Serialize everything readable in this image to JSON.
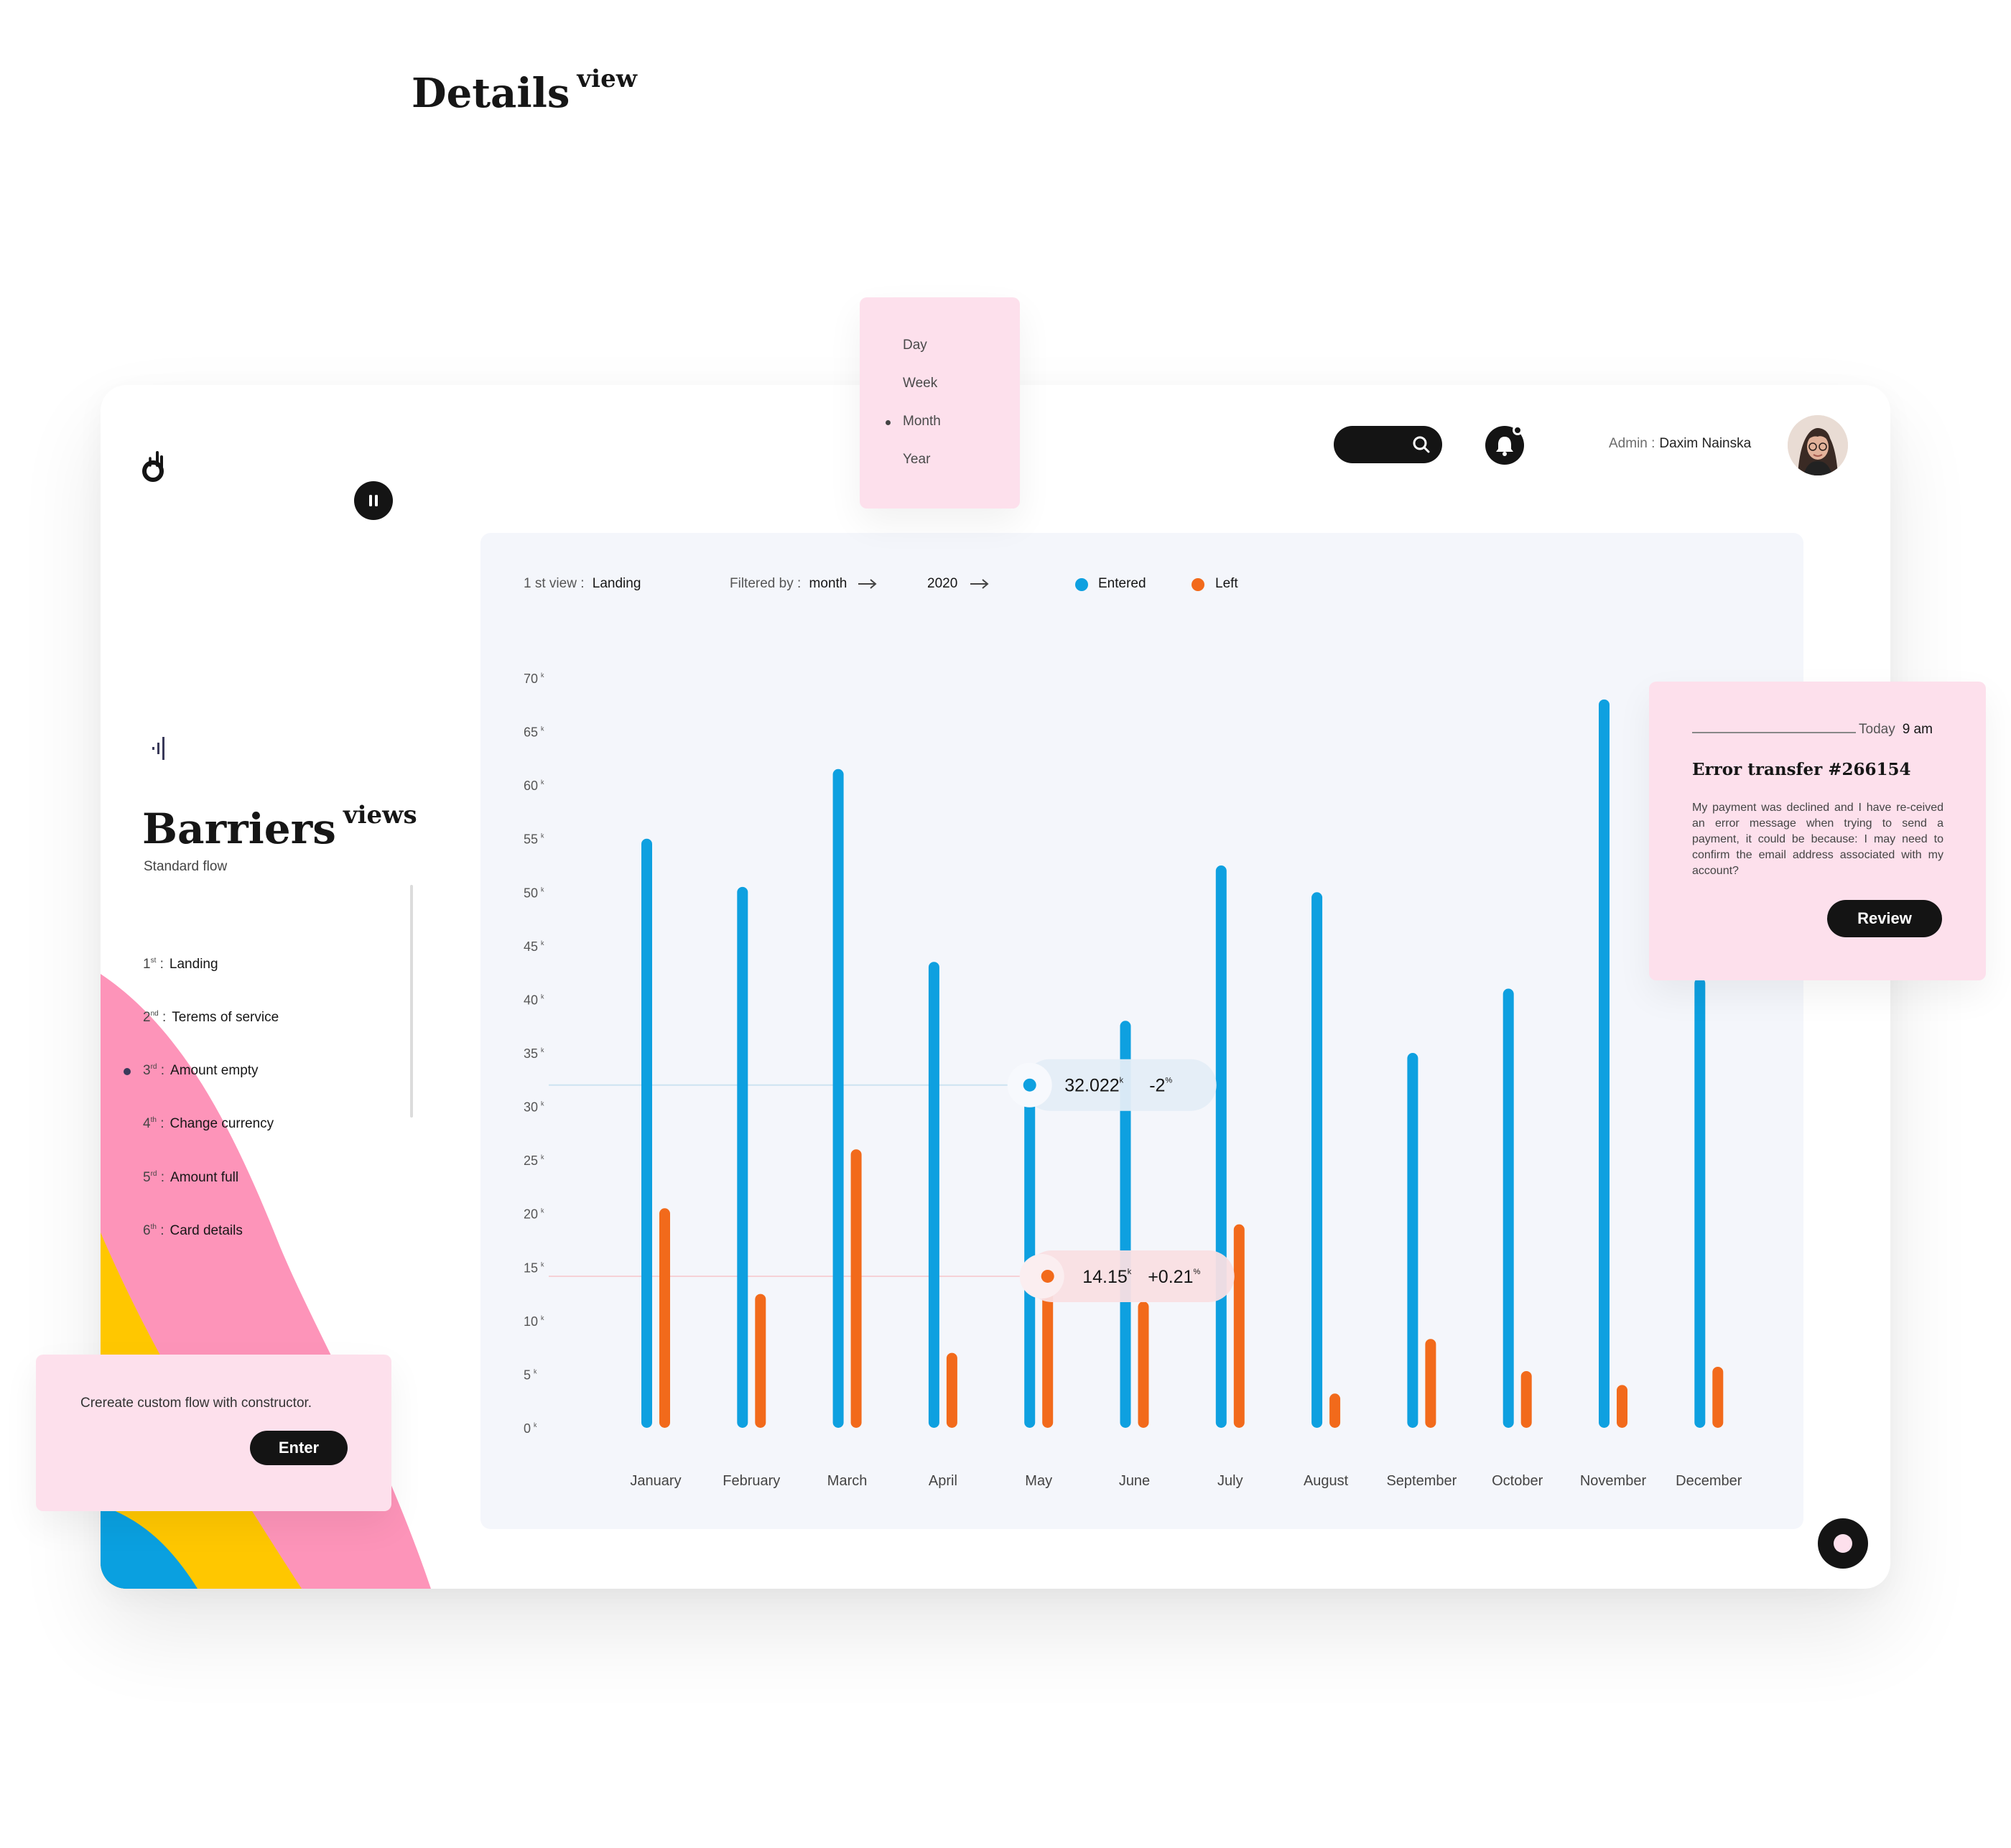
{
  "page": {
    "title": "Details",
    "title_suffix": "view"
  },
  "period_menu": {
    "items": [
      "Day",
      "Week",
      "Month",
      "Year"
    ],
    "selected": "Month"
  },
  "header": {
    "admin_label": "Admin :",
    "admin_name": "Daxim Nainska",
    "search_icon": "search-icon",
    "bell_icon": "bell-icon"
  },
  "sidebar": {
    "title": "Barriers",
    "title_suffix": "views",
    "subtitle": "Standard flow",
    "steps": [
      {
        "num": "1",
        "ord": "st",
        "label": "Landing"
      },
      {
        "num": "2",
        "ord": "nd",
        "label": "Terems of service"
      },
      {
        "num": "3",
        "ord": "rd",
        "label": "Amount empty"
      },
      {
        "num": "4",
        "ord": "th",
        "label": "Change currency"
      },
      {
        "num": "5",
        "ord": "rd",
        "label": "Amount full"
      },
      {
        "num": "6",
        "ord": "th",
        "label": "Card details"
      }
    ],
    "active_step": 2
  },
  "constructor": {
    "text": "Crereate custom flow with constructor.",
    "button": "Enter"
  },
  "filters": {
    "view_label": "1 st view :",
    "view_value": "Landing",
    "filter_label": "Filtered by :",
    "filter_value": "month",
    "year": "2020"
  },
  "colors": {
    "entered": "#0ea0e0",
    "left": "#f26a1b",
    "pink": "#fde0ec",
    "yellow": "#ffc700",
    "blue": "#0aa0e0",
    "dark": "#141414"
  },
  "chart_data": {
    "type": "bar",
    "categories": [
      "January",
      "February",
      "March",
      "April",
      "May",
      "June",
      "July",
      "August",
      "September",
      "October",
      "November",
      "December"
    ],
    "series": [
      {
        "name": "Entered",
        "values": [
          55,
          50.5,
          61.5,
          43.5,
          32,
          38,
          52.5,
          50,
          35,
          41,
          68,
          42
        ]
      },
      {
        "name": "Left",
        "values": [
          20.5,
          12.5,
          26,
          7,
          14.15,
          11.8,
          19,
          3.2,
          8.3,
          5.3,
          4,
          5.7
        ]
      }
    ],
    "y_ticks": [
      "0",
      "5",
      "10",
      "15",
      "20",
      "25",
      "30",
      "35",
      "40",
      "45",
      "50",
      "55",
      "60",
      "65",
      "70"
    ],
    "y_unit": "k",
    "ylim": [
      0,
      70
    ],
    "highlight": {
      "month": "May",
      "entered_value": "32.022",
      "entered_unit": "k",
      "entered_change": "-2",
      "entered_change_unit": "%",
      "left_value": "14.15",
      "left_unit": "k",
      "left_change": "+0.21",
      "left_change_unit": "%"
    },
    "legend_position": "top"
  },
  "error_card": {
    "time_label": "Today",
    "time_value": "9 am",
    "title": "Error transfer #266154",
    "body": "My payment was declined and I have re-ceived an error message when trying to send a payment, it could be because: I may need to confirm the email address associated with my account?",
    "button": "Review"
  }
}
